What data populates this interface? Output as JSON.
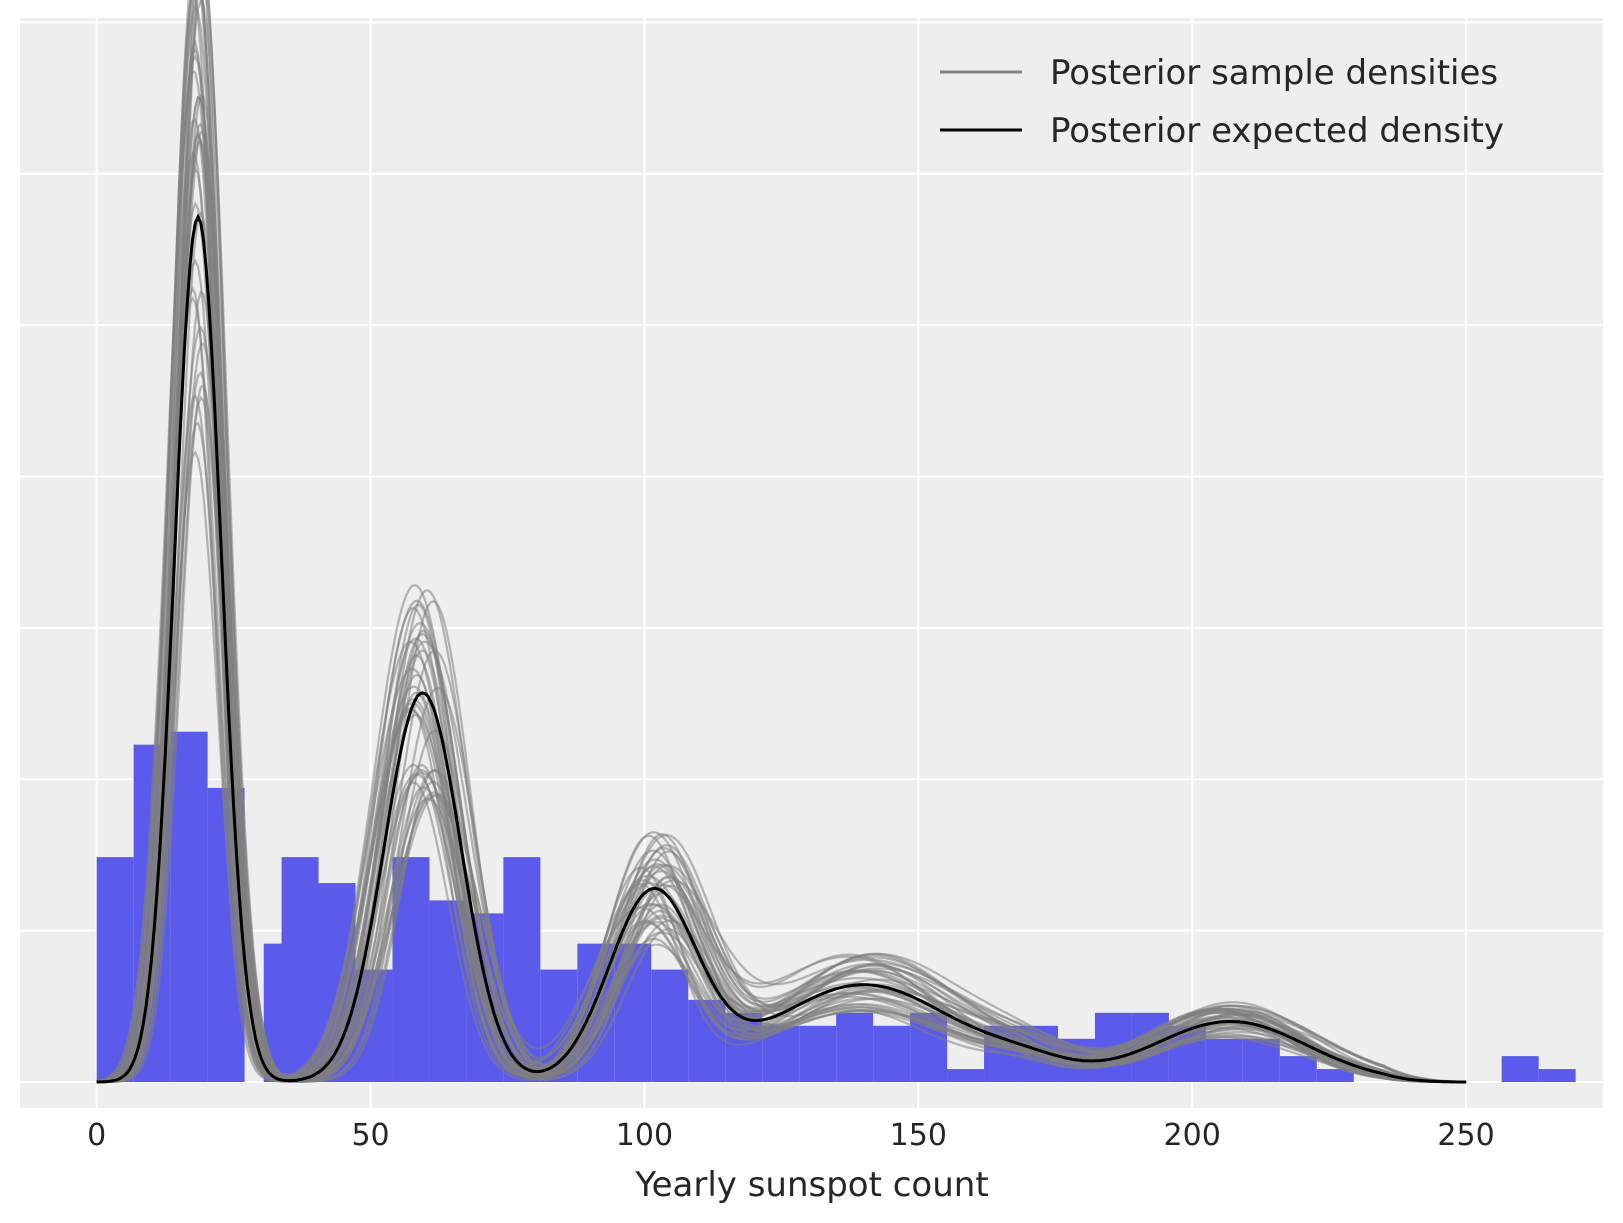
{
  "chart_data": {
    "type": "histogram+line",
    "xlabel": "Yearly sunspot count",
    "ylabel": "",
    "xlim": [
      -14,
      275
    ],
    "ylim": [
      -0.0006,
      0.0246
    ],
    "grid": true,
    "legend_position": "top-right",
    "x_ticks": [
      0,
      50,
      100,
      150,
      200,
      250
    ],
    "x_tick_labels": [
      "0",
      "50",
      "100",
      "150",
      "200",
      "250"
    ],
    "y_gridlines": [
      0,
      0.0035,
      0.007,
      0.0105,
      0.014,
      0.0175,
      0.021,
      0.0245
    ],
    "colors": {
      "background": "#EEEEEE",
      "grid": "#FFFFFF",
      "histogram": "#5B5BEB",
      "samples": "#808080",
      "expected": "#000000"
    },
    "histogram": {
      "bin_width": 6.75,
      "bins": [
        [
          0.0,
          0.0052
        ],
        [
          6.75,
          0.0078
        ],
        [
          13.5,
          0.0081
        ],
        [
          20.25,
          0.0068
        ],
        [
          27.0,
          0.0
        ],
        [
          30.5,
          0.0032
        ],
        [
          33.75,
          0.0052
        ],
        [
          40.5,
          0.0046
        ],
        [
          47.25,
          0.0026
        ],
        [
          54.0,
          0.0052
        ],
        [
          60.75,
          0.0042
        ],
        [
          67.5,
          0.0039
        ],
        [
          74.25,
          0.0052
        ],
        [
          81.0,
          0.0026
        ],
        [
          87.75,
          0.0032
        ],
        [
          94.5,
          0.0032
        ],
        [
          101.25,
          0.0026
        ],
        [
          108.0,
          0.0019
        ],
        [
          114.75,
          0.0016
        ],
        [
          121.5,
          0.0013
        ],
        [
          128.25,
          0.0013
        ],
        [
          135.0,
          0.0016
        ],
        [
          141.75,
          0.0013
        ],
        [
          148.5,
          0.0016
        ],
        [
          155.25,
          0.0003
        ],
        [
          162.0,
          0.0013
        ],
        [
          168.75,
          0.0013
        ],
        [
          175.5,
          0.001
        ],
        [
          182.25,
          0.0016
        ],
        [
          189.0,
          0.0016
        ],
        [
          195.75,
          0.0013
        ],
        [
          202.5,
          0.001
        ],
        [
          209.25,
          0.001
        ],
        [
          216.0,
          0.0006
        ],
        [
          222.75,
          0.0003
        ],
        [
          256.5,
          0.0006
        ],
        [
          263.25,
          0.0003
        ]
      ]
    },
    "expected_density": {
      "name": "Posterior expected density",
      "components": [
        {
          "mu": 18.5,
          "sigma": 4.3,
          "peak": 0.02
        },
        {
          "mu": 59.5,
          "sigma": 7.0,
          "peak": 0.009
        },
        {
          "mu": 101.5,
          "sigma": 8.0,
          "peak": 0.0043
        },
        {
          "mu": 140.0,
          "sigma": 17.0,
          "peak": 0.00225
        },
        {
          "mu": 207.0,
          "sigma": 14.0,
          "peak": 0.0014
        },
        {
          "mu": 170.0,
          "sigma": 8.0,
          "peak": 0.0003
        }
      ]
    },
    "sample_densities": {
      "name": "Posterior sample densities",
      "count": 40
    },
    "legend": [
      {
        "label": "Posterior sample densities",
        "color": "#808080"
      },
      {
        "label": "Posterior expected density",
        "color": "#000000"
      }
    ]
  }
}
